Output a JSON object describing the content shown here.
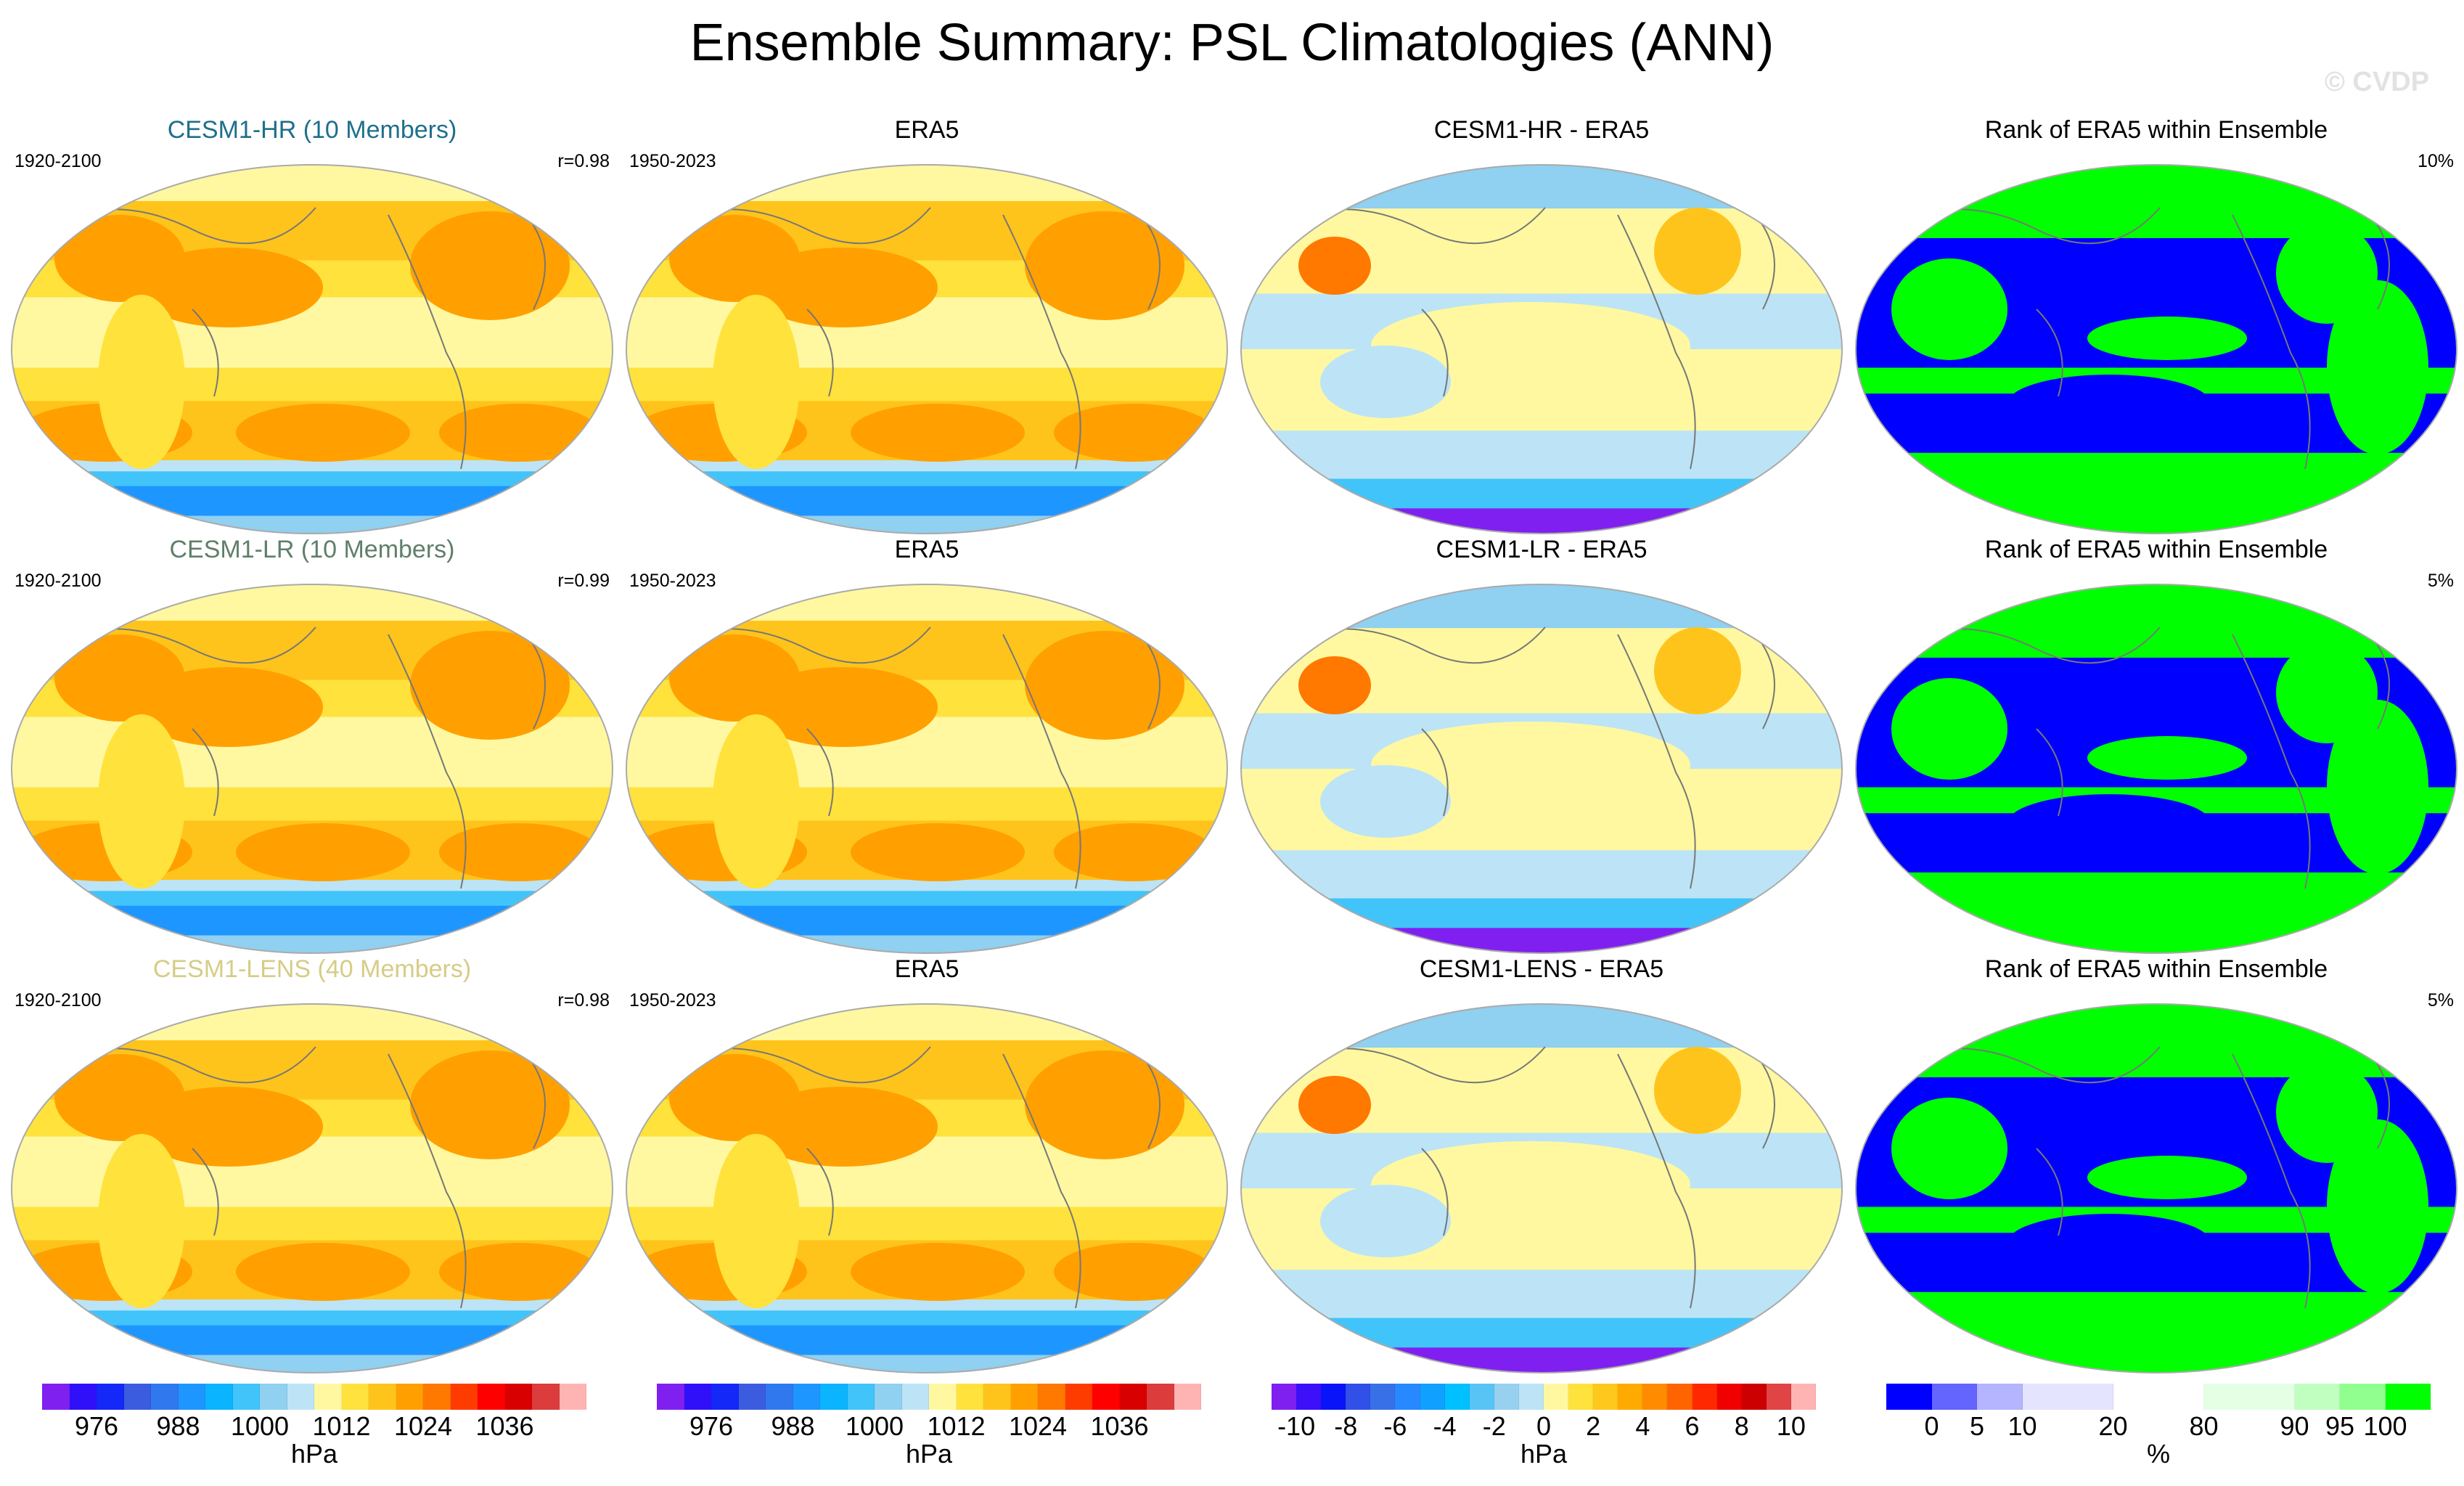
{
  "title": "Ensemble Summary: PSL Climatologies (ANN)",
  "watermark": "© CVDP",
  "rows": [
    {
      "panels": [
        {
          "type": "clim",
          "title": "CESM1-HR (10 Members)",
          "title_color": "#1f6f8b",
          "left": "1920-2100",
          "right": "r=0.98"
        },
        {
          "type": "clim",
          "title": "ERA5",
          "title_color": "#000000",
          "left": "1950-2023",
          "right": ""
        },
        {
          "type": "diff",
          "title": "CESM1-HR - ERA5",
          "title_color": "#000000",
          "left": "",
          "right": ""
        },
        {
          "type": "rank",
          "title": "Rank of ERA5 within Ensemble",
          "title_color": "#000000",
          "left": "",
          "right": "10%"
        }
      ]
    },
    {
      "panels": [
        {
          "type": "clim",
          "title": "CESM1-LR (10 Members)",
          "title_color": "#5f7f6a",
          "left": "1920-2100",
          "right": "r=0.99"
        },
        {
          "type": "clim",
          "title": "ERA5",
          "title_color": "#000000",
          "left": "1950-2023",
          "right": ""
        },
        {
          "type": "diff",
          "title": "CESM1-LR - ERA5",
          "title_color": "#000000",
          "left": "",
          "right": ""
        },
        {
          "type": "rank",
          "title": "Rank of ERA5 within Ensemble",
          "title_color": "#000000",
          "left": "",
          "right": "5%"
        }
      ]
    },
    {
      "panels": [
        {
          "type": "clim",
          "title": "CESM1-LENS (40 Members)",
          "title_color": "#d6cc86",
          "left": "1920-2100",
          "right": "r=0.98"
        },
        {
          "type": "clim",
          "title": "ERA5",
          "title_color": "#000000",
          "left": "1950-2023",
          "right": ""
        },
        {
          "type": "diff",
          "title": "CESM1-LENS - ERA5",
          "title_color": "#000000",
          "left": "",
          "right": ""
        },
        {
          "type": "rank",
          "title": "Rank of ERA5 within Ensemble",
          "title_color": "#000000",
          "left": "",
          "right": "5%"
        }
      ]
    }
  ],
  "chart_data": {
    "type": "heatmap",
    "colorbars": [
      {
        "unit": "hPa",
        "start": 968,
        "step": 4,
        "colors": [
          "#8020f0",
          "#3010f8",
          "#1428f8",
          "#3c5ce0",
          "#3078ee",
          "#1e96ff",
          "#0ab4ff",
          "#40c4fa",
          "#90d0f0",
          "#bce4f6",
          "#fff8a0",
          "#ffe23c",
          "#ffc41c",
          "#ffa000",
          "#ff7800",
          "#ff3c00",
          "#ff0000",
          "#d80000",
          "#dc3c3c",
          "#ffb4b4"
        ],
        "labels": [
          "976",
          "988",
          "1000",
          "1012",
          "1024",
          "1036"
        ]
      },
      {
        "unit": "hPa",
        "start": 968,
        "step": 4,
        "colors": [
          "#8020f0",
          "#3010f8",
          "#1428f8",
          "#3c5ce0",
          "#3078ee",
          "#1e96ff",
          "#0ab4ff",
          "#40c4fa",
          "#90d0f0",
          "#bce4f6",
          "#fff8a0",
          "#ffe23c",
          "#ffc41c",
          "#ffa000",
          "#ff7800",
          "#ff3c00",
          "#ff0000",
          "#d80000",
          "#dc3c3c",
          "#ffb4b4"
        ],
        "labels": [
          "976",
          "988",
          "1000",
          "1012",
          "1024",
          "1036"
        ]
      },
      {
        "unit": "hPa",
        "start": -11,
        "step": 1,
        "colors": [
          "#8020f0",
          "#3c10f8",
          "#0a14f8",
          "#3050e8",
          "#3870e8",
          "#2888ff",
          "#10a0ff",
          "#00c0ff",
          "#58c4f6",
          "#98d0f0",
          "#bce4f6",
          "#fff8a0",
          "#ffe23c",
          "#ffc81c",
          "#ffaa00",
          "#ff8c00",
          "#ff6400",
          "#ff2800",
          "#f00000",
          "#cc0000",
          "#e04444",
          "#ffb4b4"
        ],
        "labels": [
          "-10",
          "-8",
          "-6",
          "-4",
          "-2",
          "0",
          "2",
          "4",
          "6",
          "8",
          "10"
        ]
      },
      {
        "unit": "%",
        "bounds": [
          -5,
          0,
          5,
          10,
          20,
          80,
          90,
          95,
          100,
          105
        ],
        "colors": [
          "#0000ff",
          "#6464ff",
          "#b4b4ff",
          "#e4e4ff",
          "#ffffff",
          "#e4ffe4",
          "#c0ffc0",
          "#90ff90",
          "#00ff00"
        ],
        "labels": [
          "0",
          "5",
          "10",
          "20",
          "80",
          "90",
          "95",
          "100"
        ]
      }
    ]
  }
}
